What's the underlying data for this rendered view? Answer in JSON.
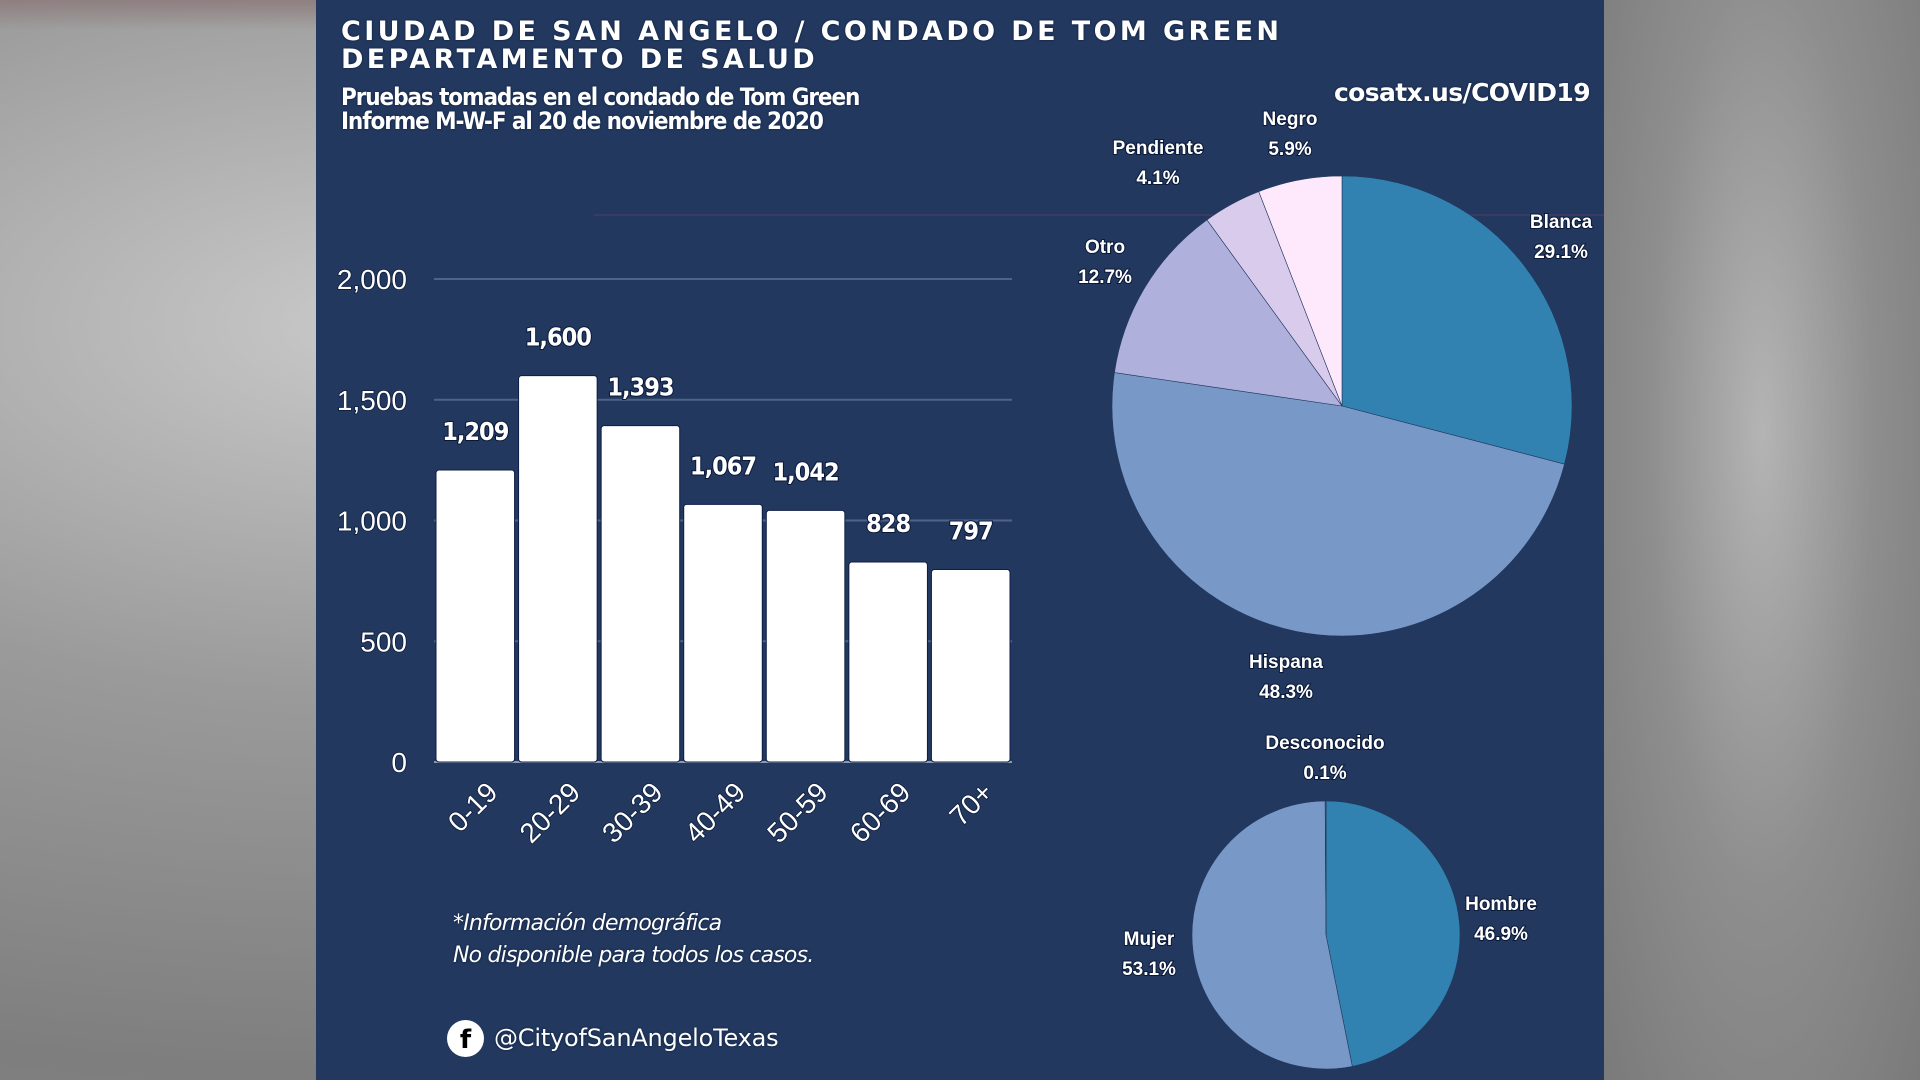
{
  "header": {
    "title_line1": "CIUDAD DE SAN ANGELO / CONDADO DE TOM GREEN",
    "title_line2": "DEPARTAMENTO DE SALUD",
    "subtitle_line1": "Pruebas tomadas en el condado de Tom Green",
    "subtitle_line2": "Informe M-W-F al 20 de noviembre de 2020",
    "website": "cosatx.us/COVID19"
  },
  "footer": {
    "note_line1": "*Información demográfica",
    "note_line2": "No disponible para todos los casos.",
    "facebook_icon": "facebook-icon",
    "facebook_handle": "@CityofSanAngeloTexas"
  },
  "colors": {
    "background": "#22385e",
    "bar": "#ffffff",
    "grid": "#4d6488",
    "blanca": "#3182b0",
    "hispana": "#7899c8",
    "otro": "#afb0dc",
    "pendiente": "#d9cbec",
    "negro": "#fde9fb",
    "hombre": "#3182b0",
    "mujer": "#7899c8",
    "desconocido": "#5a7fb0"
  },
  "chart_data": [
    {
      "type": "bar",
      "title": "",
      "xlabel": "",
      "ylabel": "",
      "categories": [
        "0-19",
        "20-29",
        "30-39",
        "40-49",
        "50-59",
        "60-69",
        "70+"
      ],
      "values": [
        1209,
        1600,
        1393,
        1067,
        1042,
        828,
        797
      ],
      "value_labels": [
        "1,209",
        "1,600",
        "1,393",
        "1,067",
        "1,042",
        "828",
        "797"
      ],
      "ylim": [
        0,
        2000
      ],
      "yticks": [
        0,
        500,
        1000,
        1500,
        2000
      ],
      "ytick_labels": [
        "0",
        "500",
        "1,000",
        "1,500",
        "2,000"
      ],
      "grid": true,
      "xtick_rotation": -45
    },
    {
      "type": "pie",
      "title": "",
      "start": "top",
      "direction": "clockwise",
      "slices": [
        {
          "label": "Blanca",
          "value": 29.1,
          "display": "29.1%",
          "color": "#3182b0"
        },
        {
          "label": "Hispana",
          "value": 48.3,
          "display": "48.3%",
          "color": "#7899c8"
        },
        {
          "label": "Otro",
          "value": 12.7,
          "display": "12.7%",
          "color": "#afb0dc"
        },
        {
          "label": "Pendiente",
          "value": 4.1,
          "display": "4.1%",
          "color": "#d9cbec"
        },
        {
          "label": "Negro",
          "value": 5.9,
          "display": "5.9%",
          "color": "#fde9fb"
        }
      ]
    },
    {
      "type": "pie",
      "title": "",
      "start": "top",
      "direction": "clockwise",
      "slices": [
        {
          "label": "Hombre",
          "value": 46.9,
          "display": "46.9%",
          "color": "#3182b0"
        },
        {
          "label": "Mujer",
          "value": 53.1,
          "display": "53.1%",
          "color": "#7899c8"
        },
        {
          "label": "Desconocido",
          "value": 0.1,
          "display": "0.1%",
          "color": "#5a7fb0"
        }
      ]
    }
  ]
}
